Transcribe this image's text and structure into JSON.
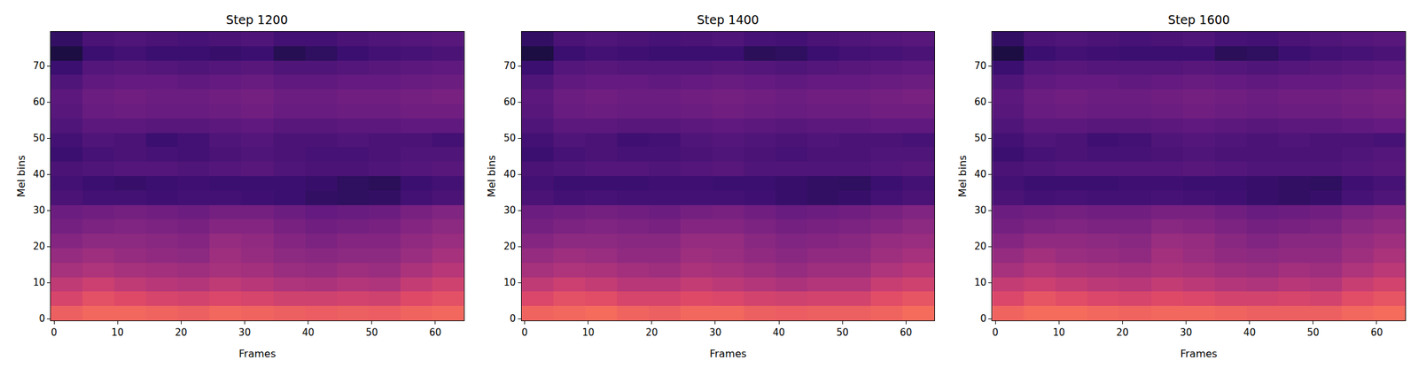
{
  "chart_data": [
    {
      "type": "heatmap",
      "title": "Step 1200",
      "x_label": "Frames",
      "y_label": "Mel bins",
      "x": [
        2,
        7,
        12,
        17,
        22,
        27,
        32,
        37,
        42,
        47,
        52,
        57,
        62
      ],
      "y": [
        1.5,
        5.5,
        9.5,
        13.5,
        17.5,
        21.5,
        25.5,
        29.5,
        33.5,
        37.5,
        41.5,
        45.5,
        49.5,
        53.5,
        57.5,
        61.5,
        65.5,
        69.5,
        73.5,
        77.5
      ],
      "z": [
        [
          0.66,
          0.68,
          0.68,
          0.67,
          0.66,
          0.68,
          0.67,
          0.66,
          0.65,
          0.66,
          0.65,
          0.67,
          0.68
        ],
        [
          0.58,
          0.62,
          0.6,
          0.58,
          0.57,
          0.59,
          0.58,
          0.56,
          0.56,
          0.57,
          0.56,
          0.6,
          0.62
        ],
        [
          0.52,
          0.55,
          0.52,
          0.5,
          0.49,
          0.52,
          0.5,
          0.48,
          0.47,
          0.49,
          0.48,
          0.53,
          0.56
        ],
        [
          0.46,
          0.48,
          0.46,
          0.45,
          0.44,
          0.46,
          0.45,
          0.43,
          0.42,
          0.44,
          0.43,
          0.47,
          0.5
        ],
        [
          0.42,
          0.44,
          0.42,
          0.41,
          0.4,
          0.44,
          0.42,
          0.4,
          0.39,
          0.4,
          0.4,
          0.43,
          0.46
        ],
        [
          0.38,
          0.4,
          0.4,
          0.39,
          0.38,
          0.42,
          0.41,
          0.38,
          0.36,
          0.38,
          0.38,
          0.41,
          0.43
        ],
        [
          0.34,
          0.36,
          0.37,
          0.36,
          0.35,
          0.38,
          0.38,
          0.35,
          0.33,
          0.34,
          0.35,
          0.38,
          0.4
        ],
        [
          0.32,
          0.33,
          0.34,
          0.33,
          0.32,
          0.34,
          0.34,
          0.32,
          0.3,
          0.31,
          0.32,
          0.35,
          0.37
        ],
        [
          0.24,
          0.22,
          0.22,
          0.21,
          0.22,
          0.22,
          0.21,
          0.2,
          0.18,
          0.17,
          0.18,
          0.22,
          0.24
        ],
        [
          0.22,
          0.2,
          0.19,
          0.2,
          0.21,
          0.2,
          0.2,
          0.2,
          0.19,
          0.17,
          0.16,
          0.2,
          0.22
        ],
        [
          0.24,
          0.25,
          0.26,
          0.26,
          0.25,
          0.26,
          0.27,
          0.25,
          0.24,
          0.24,
          0.25,
          0.26,
          0.27
        ],
        [
          0.2,
          0.23,
          0.24,
          0.23,
          0.22,
          0.24,
          0.25,
          0.24,
          0.23,
          0.23,
          0.24,
          0.25,
          0.25
        ],
        [
          0.22,
          0.25,
          0.24,
          0.2,
          0.22,
          0.25,
          0.26,
          0.24,
          0.24,
          0.25,
          0.24,
          0.24,
          0.22
        ],
        [
          0.25,
          0.28,
          0.28,
          0.27,
          0.27,
          0.28,
          0.29,
          0.27,
          0.27,
          0.28,
          0.28,
          0.29,
          0.29
        ],
        [
          0.27,
          0.31,
          0.32,
          0.31,
          0.31,
          0.32,
          0.33,
          0.31,
          0.31,
          0.32,
          0.32,
          0.33,
          0.33
        ],
        [
          0.28,
          0.32,
          0.33,
          0.32,
          0.32,
          0.33,
          0.34,
          0.32,
          0.32,
          0.33,
          0.33,
          0.34,
          0.35
        ],
        [
          0.25,
          0.29,
          0.3,
          0.3,
          0.29,
          0.3,
          0.31,
          0.29,
          0.29,
          0.3,
          0.3,
          0.31,
          0.32
        ],
        [
          0.2,
          0.26,
          0.27,
          0.26,
          0.25,
          0.26,
          0.27,
          0.25,
          0.25,
          0.26,
          0.27,
          0.28,
          0.29
        ],
        [
          0.12,
          0.2,
          0.22,
          0.2,
          0.2,
          0.19,
          0.2,
          0.15,
          0.17,
          0.2,
          0.22,
          0.23,
          0.24
        ],
        [
          0.18,
          0.24,
          0.25,
          0.24,
          0.23,
          0.24,
          0.25,
          0.22,
          0.22,
          0.24,
          0.25,
          0.26,
          0.27
        ]
      ],
      "zlim": [
        0,
        1
      ],
      "xlim": [
        -0.5,
        64.5
      ],
      "ylim": [
        -0.5,
        79.5
      ],
      "xticks": [
        0,
        10,
        20,
        30,
        40,
        50,
        60
      ],
      "yticks": [
        0,
        10,
        20,
        30,
        40,
        50,
        60,
        70
      ]
    },
    {
      "type": "heatmap",
      "title": "Step 1400",
      "x_label": "Frames",
      "y_label": "Mel bins",
      "x": [
        2,
        7,
        12,
        17,
        22,
        27,
        32,
        37,
        42,
        47,
        52,
        57,
        62
      ],
      "y": [
        1.5,
        5.5,
        9.5,
        13.5,
        17.5,
        21.5,
        25.5,
        29.5,
        33.5,
        37.5,
        41.5,
        45.5,
        49.5,
        53.5,
        57.5,
        61.5,
        65.5,
        69.5,
        73.5,
        77.5
      ],
      "z": [
        [
          0.67,
          0.68,
          0.69,
          0.67,
          0.66,
          0.68,
          0.68,
          0.66,
          0.65,
          0.66,
          0.66,
          0.67,
          0.69
        ],
        [
          0.59,
          0.62,
          0.61,
          0.58,
          0.58,
          0.6,
          0.59,
          0.57,
          0.56,
          0.57,
          0.57,
          0.61,
          0.63
        ],
        [
          0.52,
          0.55,
          0.53,
          0.5,
          0.5,
          0.53,
          0.51,
          0.49,
          0.47,
          0.49,
          0.49,
          0.54,
          0.56
        ],
        [
          0.46,
          0.48,
          0.47,
          0.45,
          0.44,
          0.47,
          0.46,
          0.44,
          0.42,
          0.44,
          0.44,
          0.48,
          0.5
        ],
        [
          0.42,
          0.44,
          0.43,
          0.41,
          0.41,
          0.44,
          0.43,
          0.41,
          0.39,
          0.41,
          0.41,
          0.44,
          0.46
        ],
        [
          0.38,
          0.4,
          0.4,
          0.39,
          0.39,
          0.42,
          0.42,
          0.39,
          0.37,
          0.38,
          0.39,
          0.42,
          0.43
        ],
        [
          0.34,
          0.36,
          0.37,
          0.36,
          0.35,
          0.38,
          0.38,
          0.36,
          0.34,
          0.35,
          0.36,
          0.38,
          0.4
        ],
        [
          0.32,
          0.33,
          0.34,
          0.33,
          0.32,
          0.34,
          0.35,
          0.33,
          0.31,
          0.32,
          0.33,
          0.35,
          0.37
        ],
        [
          0.24,
          0.22,
          0.23,
          0.22,
          0.22,
          0.22,
          0.22,
          0.21,
          0.19,
          0.18,
          0.19,
          0.22,
          0.24
        ],
        [
          0.22,
          0.2,
          0.2,
          0.2,
          0.21,
          0.21,
          0.2,
          0.2,
          0.19,
          0.18,
          0.17,
          0.2,
          0.22
        ],
        [
          0.24,
          0.25,
          0.26,
          0.26,
          0.25,
          0.26,
          0.27,
          0.25,
          0.25,
          0.25,
          0.25,
          0.26,
          0.27
        ],
        [
          0.2,
          0.23,
          0.24,
          0.23,
          0.23,
          0.24,
          0.25,
          0.24,
          0.23,
          0.24,
          0.24,
          0.25,
          0.25
        ],
        [
          0.22,
          0.25,
          0.24,
          0.21,
          0.22,
          0.25,
          0.26,
          0.25,
          0.24,
          0.25,
          0.24,
          0.24,
          0.23
        ],
        [
          0.25,
          0.28,
          0.28,
          0.27,
          0.27,
          0.28,
          0.29,
          0.28,
          0.27,
          0.28,
          0.28,
          0.29,
          0.29
        ],
        [
          0.27,
          0.31,
          0.32,
          0.31,
          0.31,
          0.32,
          0.33,
          0.32,
          0.31,
          0.32,
          0.32,
          0.33,
          0.33
        ],
        [
          0.28,
          0.32,
          0.33,
          0.32,
          0.32,
          0.33,
          0.34,
          0.33,
          0.32,
          0.33,
          0.33,
          0.34,
          0.35
        ],
        [
          0.25,
          0.29,
          0.3,
          0.3,
          0.29,
          0.3,
          0.31,
          0.3,
          0.29,
          0.3,
          0.3,
          0.31,
          0.32
        ],
        [
          0.2,
          0.26,
          0.27,
          0.26,
          0.26,
          0.26,
          0.27,
          0.26,
          0.25,
          0.26,
          0.27,
          0.28,
          0.29
        ],
        [
          0.12,
          0.2,
          0.22,
          0.21,
          0.2,
          0.2,
          0.2,
          0.16,
          0.17,
          0.2,
          0.22,
          0.23,
          0.24
        ],
        [
          0.18,
          0.24,
          0.25,
          0.24,
          0.23,
          0.24,
          0.25,
          0.23,
          0.22,
          0.24,
          0.25,
          0.26,
          0.27
        ]
      ],
      "zlim": [
        0,
        1
      ],
      "xlim": [
        -0.5,
        64.5
      ],
      "ylim": [
        -0.5,
        79.5
      ],
      "xticks": [
        0,
        10,
        20,
        30,
        40,
        50,
        60
      ],
      "yticks": [
        0,
        10,
        20,
        30,
        40,
        50,
        60,
        70
      ]
    },
    {
      "type": "heatmap",
      "title": "Step 1600",
      "x_label": "Frames",
      "y_label": "Mel bins",
      "x": [
        2,
        7,
        12,
        17,
        22,
        27,
        32,
        37,
        42,
        47,
        52,
        57,
        62
      ],
      "y": [
        1.5,
        5.5,
        9.5,
        13.5,
        17.5,
        21.5,
        25.5,
        29.5,
        33.5,
        37.5,
        41.5,
        45.5,
        49.5,
        53.5,
        57.5,
        61.5,
        65.5,
        69.5,
        73.5,
        77.5
      ],
      "z": [
        [
          0.67,
          0.69,
          0.69,
          0.68,
          0.67,
          0.68,
          0.68,
          0.67,
          0.66,
          0.66,
          0.66,
          0.68,
          0.69
        ],
        [
          0.59,
          0.63,
          0.61,
          0.59,
          0.58,
          0.6,
          0.59,
          0.57,
          0.57,
          0.58,
          0.57,
          0.61,
          0.63
        ],
        [
          0.53,
          0.55,
          0.53,
          0.51,
          0.5,
          0.53,
          0.51,
          0.49,
          0.48,
          0.5,
          0.49,
          0.54,
          0.57
        ],
        [
          0.46,
          0.49,
          0.47,
          0.46,
          0.45,
          0.47,
          0.46,
          0.44,
          0.43,
          0.45,
          0.44,
          0.48,
          0.51
        ],
        [
          0.42,
          0.45,
          0.43,
          0.42,
          0.41,
          0.45,
          0.43,
          0.41,
          0.4,
          0.41,
          0.41,
          0.44,
          0.47
        ],
        [
          0.38,
          0.41,
          0.41,
          0.4,
          0.39,
          0.43,
          0.42,
          0.39,
          0.37,
          0.39,
          0.39,
          0.42,
          0.44
        ],
        [
          0.34,
          0.36,
          0.37,
          0.36,
          0.36,
          0.39,
          0.38,
          0.36,
          0.34,
          0.35,
          0.36,
          0.39,
          0.41
        ],
        [
          0.32,
          0.33,
          0.34,
          0.33,
          0.33,
          0.35,
          0.35,
          0.33,
          0.31,
          0.32,
          0.33,
          0.36,
          0.38
        ],
        [
          0.24,
          0.22,
          0.23,
          0.22,
          0.22,
          0.23,
          0.22,
          0.21,
          0.19,
          0.18,
          0.19,
          0.23,
          0.25
        ],
        [
          0.22,
          0.2,
          0.2,
          0.2,
          0.21,
          0.21,
          0.2,
          0.2,
          0.19,
          0.18,
          0.17,
          0.21,
          0.23
        ],
        [
          0.24,
          0.25,
          0.26,
          0.26,
          0.26,
          0.26,
          0.27,
          0.26,
          0.25,
          0.25,
          0.25,
          0.26,
          0.27
        ],
        [
          0.2,
          0.23,
          0.24,
          0.23,
          0.23,
          0.24,
          0.25,
          0.24,
          0.24,
          0.24,
          0.24,
          0.25,
          0.26
        ],
        [
          0.22,
          0.25,
          0.24,
          0.21,
          0.22,
          0.25,
          0.26,
          0.25,
          0.24,
          0.25,
          0.24,
          0.24,
          0.23
        ],
        [
          0.25,
          0.28,
          0.28,
          0.27,
          0.27,
          0.28,
          0.29,
          0.28,
          0.27,
          0.28,
          0.28,
          0.29,
          0.3
        ],
        [
          0.27,
          0.31,
          0.32,
          0.31,
          0.31,
          0.32,
          0.33,
          0.32,
          0.31,
          0.32,
          0.32,
          0.33,
          0.34
        ],
        [
          0.28,
          0.32,
          0.33,
          0.32,
          0.32,
          0.33,
          0.34,
          0.33,
          0.32,
          0.33,
          0.33,
          0.34,
          0.35
        ],
        [
          0.25,
          0.29,
          0.3,
          0.3,
          0.29,
          0.3,
          0.31,
          0.3,
          0.29,
          0.3,
          0.3,
          0.31,
          0.32
        ],
        [
          0.2,
          0.26,
          0.27,
          0.26,
          0.26,
          0.26,
          0.27,
          0.26,
          0.25,
          0.26,
          0.27,
          0.28,
          0.29
        ],
        [
          0.12,
          0.2,
          0.22,
          0.21,
          0.2,
          0.2,
          0.2,
          0.16,
          0.17,
          0.2,
          0.22,
          0.23,
          0.24
        ],
        [
          0.18,
          0.24,
          0.25,
          0.24,
          0.23,
          0.24,
          0.25,
          0.23,
          0.22,
          0.24,
          0.25,
          0.26,
          0.27
        ]
      ],
      "zlim": [
        0,
        1
      ],
      "xlim": [
        -0.5,
        64.5
      ],
      "ylim": [
        -0.5,
        79.5
      ],
      "xticks": [
        0,
        10,
        20,
        30,
        40,
        50,
        60
      ],
      "yticks": [
        0,
        10,
        20,
        30,
        40,
        50,
        60,
        70
      ]
    }
  ]
}
